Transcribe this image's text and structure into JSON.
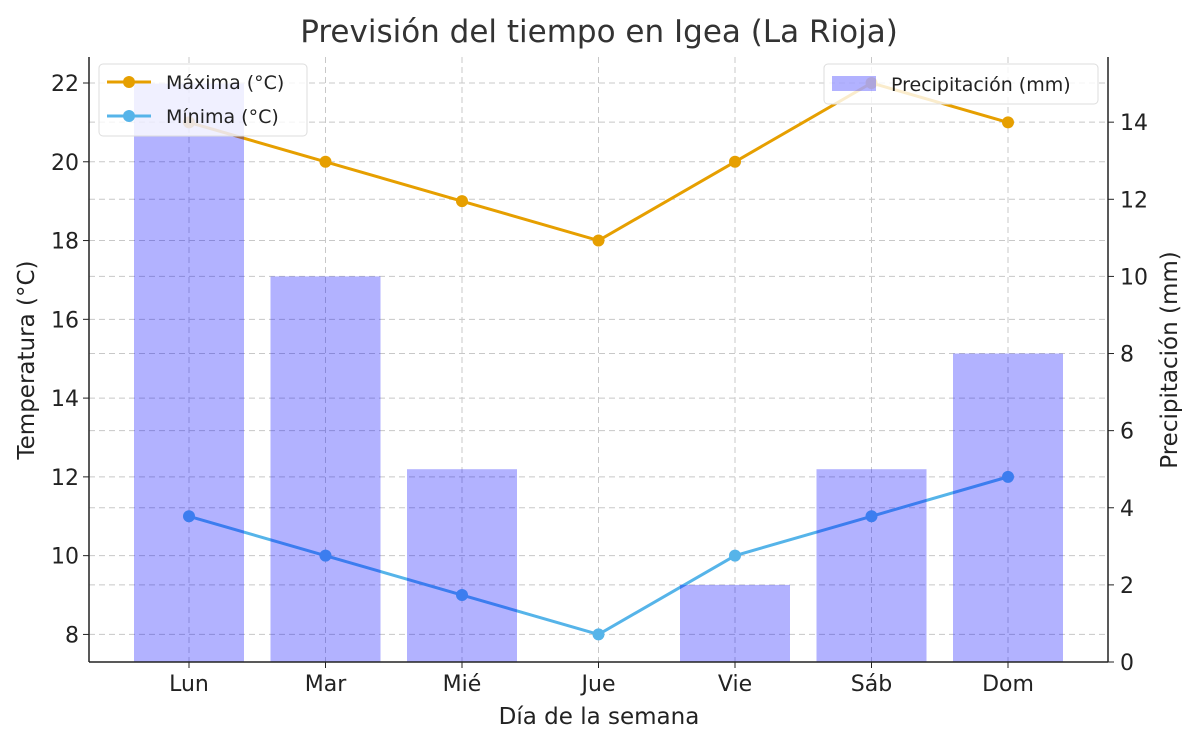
{
  "chart_data": {
    "type": "bar+line",
    "title": "Previsión del tiempo en Igea (La Rioja)",
    "xlabel": "Día de la semana",
    "ylabel": "Temperatura (°C)",
    "y2label": "Precipitación (mm)",
    "categories": [
      "Lun",
      "Mar",
      "Mié",
      "Jue",
      "Vie",
      "Sáb",
      "Dom"
    ],
    "series": [
      {
        "name": "Máxima (°C)",
        "type": "line",
        "axis": "left",
        "color": "#e69f00",
        "values": [
          21,
          20,
          19,
          18,
          20,
          22,
          21
        ]
      },
      {
        "name": "Mínima (°C)",
        "type": "line",
        "axis": "left",
        "color": "#56b4e9",
        "values": [
          11,
          10,
          9,
          8,
          10,
          11,
          12
        ]
      },
      {
        "name": "Precipitación (mm)",
        "type": "bar",
        "axis": "right",
        "color": "#0000ff",
        "opacity": 0.3,
        "values": [
          15,
          10,
          5,
          0,
          2,
          5,
          8
        ]
      }
    ],
    "ylim": [
      7.3,
      22.66
    ],
    "yticks": [
      8,
      10,
      12,
      14,
      16,
      18,
      20,
      22
    ],
    "y2lim": [
      0,
      15.69
    ],
    "y2ticks": [
      0,
      2,
      4,
      6,
      8,
      10,
      12,
      14
    ],
    "grid": true,
    "legend": [
      "top-left",
      "top-right"
    ]
  }
}
